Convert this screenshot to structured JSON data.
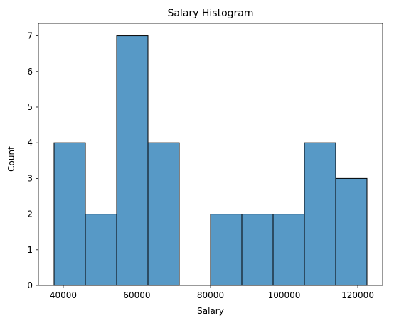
{
  "chart_data": {
    "type": "bar",
    "title": "Salary Histogram",
    "xlabel": "Salary",
    "ylabel": "Count",
    "bin_edges": [
      37500,
      46000,
      54500,
      63000,
      71500,
      80000,
      88500,
      97000,
      105500,
      114000,
      122500
    ],
    "values": [
      4,
      2,
      7,
      4,
      0,
      2,
      2,
      2,
      4,
      3
    ],
    "xlim": [
      33250,
      126750
    ],
    "ylim": [
      0,
      7.35
    ],
    "xticks": [
      40000,
      60000,
      80000,
      100000,
      120000
    ],
    "xtick_labels": [
      "40000",
      "60000",
      "80000",
      "100000",
      "120000"
    ],
    "yticks": [
      0,
      1,
      2,
      3,
      4,
      5,
      6,
      7
    ],
    "ytick_labels": [
      "0",
      "1",
      "2",
      "3",
      "4",
      "5",
      "6",
      "7"
    ],
    "grid": false,
    "bar_color": "#5799c6",
    "edge_color": "#000000"
  }
}
